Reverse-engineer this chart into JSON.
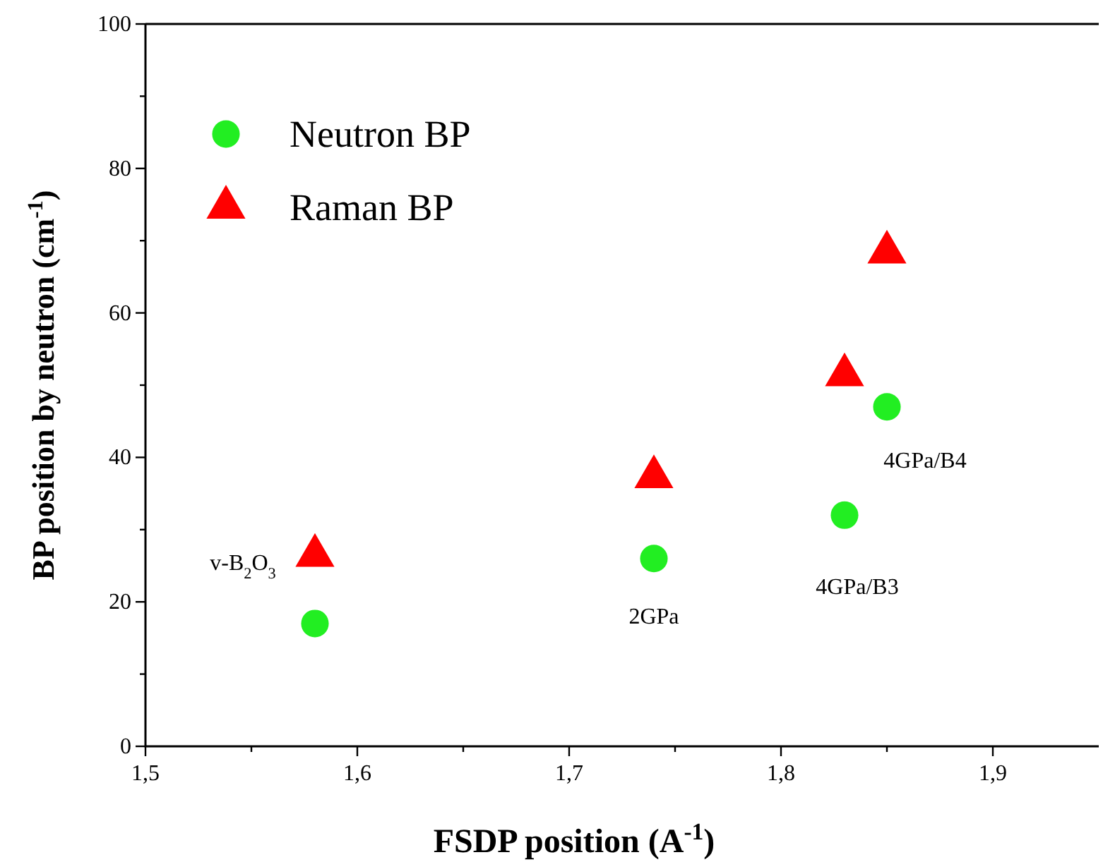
{
  "chart_data": {
    "type": "scatter",
    "xlabel": "FSDP position (A$^{-1}$)",
    "ylabel": "BP position by neutron (cm$^{-1}$)",
    "xlim": [
      1.5,
      1.95
    ],
    "ylim": [
      0,
      100
    ],
    "xticks": [
      {
        "value": 1.5,
        "label": "1,5"
      },
      {
        "value": 1.55,
        "label": null
      },
      {
        "value": 1.6,
        "label": "1,6"
      },
      {
        "value": 1.65,
        "label": null
      },
      {
        "value": 1.7,
        "label": "1,7"
      },
      {
        "value": 1.75,
        "label": null
      },
      {
        "value": 1.8,
        "label": "1,8"
      },
      {
        "value": 1.85,
        "label": null
      },
      {
        "value": 1.9,
        "label": "1,9"
      }
    ],
    "yticks": [
      0,
      {
        "value": 10,
        "label": null
      },
      20,
      {
        "value": 30,
        "label": null
      },
      40,
      {
        "value": 50,
        "label": null
      },
      60,
      {
        "value": 70,
        "label": null
      },
      80,
      {
        "value": 90,
        "label": null
      },
      100
    ],
    "grid": false,
    "legend": "top left",
    "series": [
      {
        "name": "Neutron BP",
        "color": "#22ee22",
        "marker": "circle",
        "x": [
          1.58,
          1.74,
          1.83,
          1.85
        ],
        "values": [
          17,
          26,
          32,
          47
        ]
      },
      {
        "name": "Raman BP",
        "color": "#ff0000",
        "marker": "triangle",
        "x": [
          1.58,
          1.74,
          1.83,
          1.85
        ],
        "values": [
          26.4,
          37.3,
          51.4,
          68.4
        ]
      }
    ],
    "annotations": [
      {
        "text": "v-B$_{2}$O$_{3}$",
        "x": 1.58,
        "y": 26.4
      },
      {
        "text": "2GPa",
        "x": 1.74,
        "y": 26
      },
      {
        "text": "4GPa/B3",
        "x": 1.83,
        "y": 32
      },
      {
        "text": "4GPa/B4",
        "x": 1.85,
        "y": 47
      }
    ]
  }
}
